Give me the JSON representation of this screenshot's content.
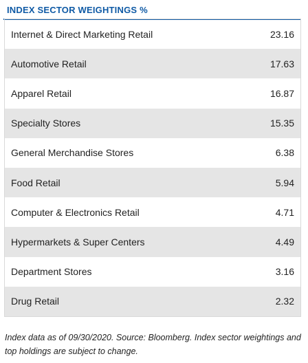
{
  "title": "INDEX SECTOR WEIGHTINGS %",
  "rows": [
    {
      "label": "Internet & Direct Marketing Retail",
      "value": "23.16"
    },
    {
      "label": "Automotive Retail",
      "value": "17.63"
    },
    {
      "label": "Apparel Retail",
      "value": "16.87"
    },
    {
      "label": "Specialty Stores",
      "value": "15.35"
    },
    {
      "label": "General Merchandise Stores",
      "value": "6.38"
    },
    {
      "label": "Food Retail",
      "value": "5.94"
    },
    {
      "label": "Computer & Electronics Retail",
      "value": "4.71"
    },
    {
      "label": "Hypermarkets & Super Centers",
      "value": "4.49"
    },
    {
      "label": "Department Stores",
      "value": "3.16"
    },
    {
      "label": "Drug Retail",
      "value": "2.32"
    }
  ],
  "footnote": "Index data as of 09/30/2020. Source: Bloomberg. Index sector weightings and top holdings are subject to change.",
  "colors": {
    "accent": "#0f5aa5",
    "shaded_row": "#e5e5e5",
    "text": "#222222"
  }
}
